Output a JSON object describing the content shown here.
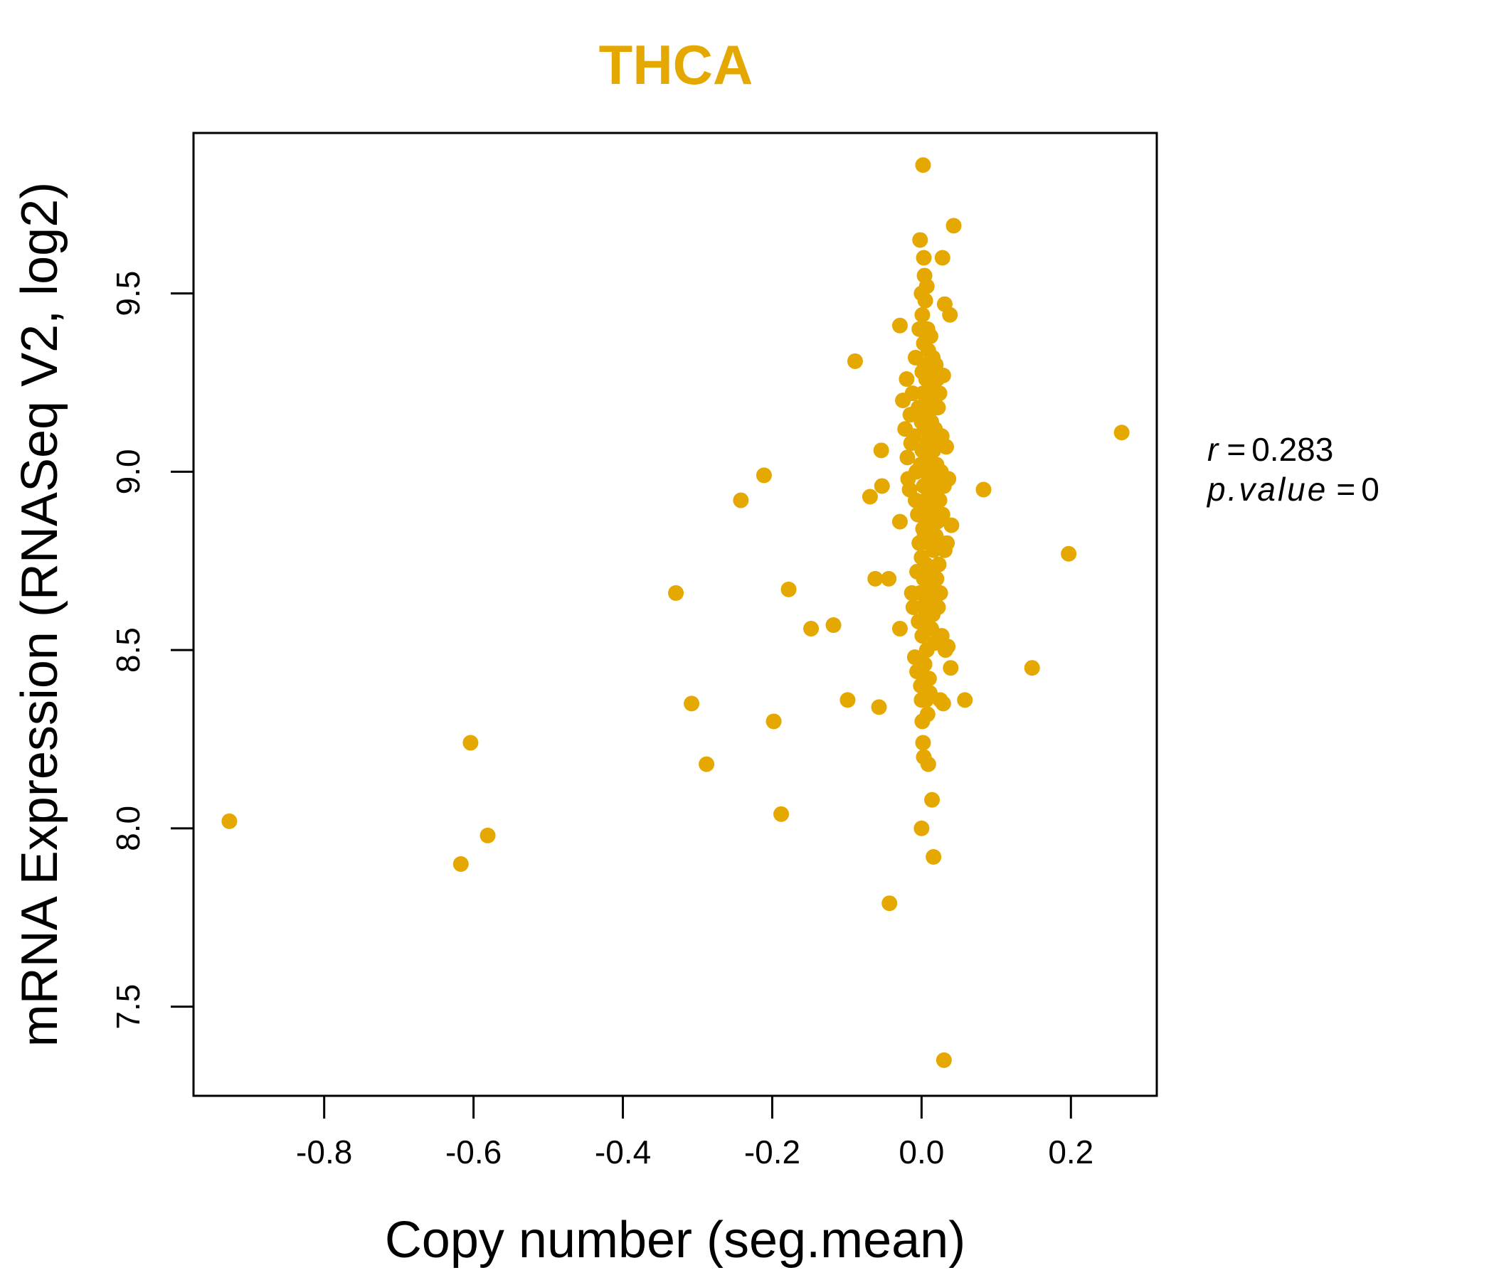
{
  "chart_data": {
    "type": "scatter",
    "title": "THCA",
    "xlabel": "Copy number (seg.mean)",
    "ylabel": "mRNA Expression (RNASeq V2, log2)",
    "xlim": [
      -0.975,
      0.315
    ],
    "ylim": [
      7.25,
      9.95
    ],
    "x_ticks": [
      -0.8,
      -0.6,
      -0.4,
      -0.2,
      0.0,
      0.2
    ],
    "x_tick_labels": [
      "-0.8",
      "-0.6",
      "-0.4",
      "-0.2",
      "0.0",
      "0.2"
    ],
    "y_ticks": [
      7.5,
      8.0,
      8.5,
      9.0,
      9.5
    ],
    "y_tick_labels": [
      "7.5",
      "8.0",
      "8.5",
      "9.0",
      "9.5"
    ],
    "point_color": "#E4A800",
    "annotation": {
      "r_label": "r",
      "r_value": "0.283",
      "p_label": "p.value",
      "p_value": "0"
    },
    "points": [
      [
        -0.927,
        8.02
      ],
      [
        -0.617,
        7.9
      ],
      [
        -0.604,
        8.24
      ],
      [
        -0.581,
        7.98
      ],
      [
        -0.329,
        8.66
      ],
      [
        -0.308,
        8.35
      ],
      [
        -0.288,
        8.18
      ],
      [
        -0.242,
        8.92
      ],
      [
        -0.211,
        8.99
      ],
      [
        -0.198,
        8.3
      ],
      [
        -0.188,
        8.04
      ],
      [
        -0.178,
        8.67
      ],
      [
        -0.148,
        8.56
      ],
      [
        -0.118,
        8.57
      ],
      [
        -0.099,
        8.36
      ],
      [
        -0.089,
        9.31
      ],
      [
        -0.069,
        8.93
      ],
      [
        -0.062,
        8.7
      ],
      [
        -0.057,
        8.34
      ],
      [
        -0.054,
        9.06
      ],
      [
        -0.053,
        8.96
      ],
      [
        -0.044,
        8.7
      ],
      [
        -0.043,
        7.79
      ],
      [
        -0.029,
        9.41
      ],
      [
        -0.029,
        8.56
      ],
      [
        -0.029,
        8.86
      ],
      [
        -0.025,
        9.2
      ],
      [
        -0.022,
        9.12
      ],
      [
        -0.02,
        9.26
      ],
      [
        -0.019,
        9.04
      ],
      [
        -0.018,
        8.98
      ],
      [
        -0.016,
        8.95
      ],
      [
        -0.015,
        9.16
      ],
      [
        -0.014,
        9.08
      ],
      [
        -0.013,
        8.66
      ],
      [
        -0.012,
        9.22
      ],
      [
        -0.011,
        8.62
      ],
      [
        -0.01,
        9.1
      ],
      [
        -0.009,
        8.48
      ],
      [
        -0.008,
        8.92
      ],
      [
        -0.008,
        9.32
      ],
      [
        -0.007,
        9.0
      ],
      [
        -0.006,
        8.72
      ],
      [
        -0.006,
        8.44
      ],
      [
        -0.005,
        8.88
      ],
      [
        -0.004,
        9.18
      ],
      [
        -0.004,
        8.58
      ],
      [
        -0.003,
        9.4
      ],
      [
        -0.003,
        8.8
      ],
      [
        -0.002,
        9.65
      ],
      [
        -0.002,
        8.66
      ],
      [
        -0.001,
        9.02
      ],
      [
        -0.001,
        8.4
      ],
      [
        0.0,
        9.5
      ],
      [
        0.0,
        8.36
      ],
      [
        0.0,
        8.0
      ],
      [
        0.0,
        8.9
      ],
      [
        0.0,
        9.14
      ],
      [
        0.0,
        8.76
      ],
      [
        0.001,
        9.28
      ],
      [
        0.001,
        8.3
      ],
      [
        0.001,
        8.54
      ],
      [
        0.001,
        9.44
      ],
      [
        0.001,
        9.06
      ],
      [
        0.002,
        9.86
      ],
      [
        0.002,
        8.24
      ],
      [
        0.002,
        8.84
      ],
      [
        0.002,
        9.22
      ],
      [
        0.002,
        8.62
      ],
      [
        0.003,
        9.6
      ],
      [
        0.003,
        8.2
      ],
      [
        0.003,
        8.96
      ],
      [
        0.003,
        9.36
      ],
      [
        0.003,
        8.7
      ],
      [
        0.004,
        9.55
      ],
      [
        0.004,
        8.46
      ],
      [
        0.004,
        9.12
      ],
      [
        0.004,
        8.82
      ],
      [
        0.004,
        9.3
      ],
      [
        0.005,
        9.48
      ],
      [
        0.005,
        8.58
      ],
      [
        0.005,
        9.0
      ],
      [
        0.005,
        8.92
      ],
      [
        0.006,
        8.36
      ],
      [
        0.006,
        9.18
      ],
      [
        0.006,
        8.74
      ],
      [
        0.006,
        9.26
      ],
      [
        0.007,
        9.52
      ],
      [
        0.007,
        8.5
      ],
      [
        0.007,
        8.88
      ],
      [
        0.007,
        9.08
      ],
      [
        0.008,
        8.32
      ],
      [
        0.008,
        9.4
      ],
      [
        0.008,
        8.66
      ],
      [
        0.008,
        9.04
      ],
      [
        0.009,
        8.18
      ],
      [
        0.009,
        9.16
      ],
      [
        0.009,
        8.8
      ],
      [
        0.009,
        9.34
      ],
      [
        0.01,
        8.98
      ],
      [
        0.01,
        8.62
      ],
      [
        0.01,
        9.22
      ],
      [
        0.01,
        8.42
      ],
      [
        0.011,
        8.38
      ],
      [
        0.011,
        9.1
      ],
      [
        0.011,
        8.86
      ],
      [
        0.011,
        9.28
      ],
      [
        0.012,
        9.38
      ],
      [
        0.012,
        8.72
      ],
      [
        0.012,
        8.94
      ],
      [
        0.013,
        8.56
      ],
      [
        0.013,
        9.14
      ],
      [
        0.013,
        8.84
      ],
      [
        0.014,
        8.08
      ],
      [
        0.014,
        9.24
      ],
      [
        0.014,
        8.68
      ],
      [
        0.015,
        9.32
      ],
      [
        0.015,
        8.9
      ],
      [
        0.015,
        8.6
      ],
      [
        0.016,
        7.92
      ],
      [
        0.016,
        9.06
      ],
      [
        0.016,
        8.78
      ],
      [
        0.017,
        9.2
      ],
      [
        0.017,
        8.64
      ],
      [
        0.018,
        8.96
      ],
      [
        0.018,
        9.12
      ],
      [
        0.018,
        8.52
      ],
      [
        0.019,
        9.3
      ],
      [
        0.019,
        8.82
      ],
      [
        0.02,
        8.7
      ],
      [
        0.02,
        9.02
      ],
      [
        0.021,
        9.26
      ],
      [
        0.021,
        8.86
      ],
      [
        0.022,
        8.62
      ],
      [
        0.022,
        9.18
      ],
      [
        0.023,
        9.08
      ],
      [
        0.023,
        8.74
      ],
      [
        0.024,
        8.92
      ],
      [
        0.024,
        9.22
      ],
      [
        0.025,
        8.66
      ],
      [
        0.025,
        8.36
      ],
      [
        0.026,
        9.0
      ],
      [
        0.026,
        8.8
      ],
      [
        0.027,
        9.1
      ],
      [
        0.027,
        8.54
      ],
      [
        0.028,
        9.6
      ],
      [
        0.028,
        8.88
      ],
      [
        0.029,
        9.27
      ],
      [
        0.029,
        8.35
      ],
      [
        0.03,
        7.35
      ],
      [
        0.03,
        8.96
      ],
      [
        0.031,
        8.78
      ],
      [
        0.031,
        9.47
      ],
      [
        0.032,
        8.5
      ],
      [
        0.033,
        9.07
      ],
      [
        0.034,
        8.8
      ],
      [
        0.035,
        8.51
      ],
      [
        0.036,
        8.98
      ],
      [
        0.038,
        9.44
      ],
      [
        0.039,
        8.45
      ],
      [
        0.04,
        8.85
      ],
      [
        0.043,
        9.69
      ],
      [
        0.058,
        8.36
      ],
      [
        0.083,
        8.95
      ],
      [
        0.148,
        8.45
      ],
      [
        0.197,
        8.77
      ],
      [
        0.268,
        9.11
      ]
    ]
  }
}
